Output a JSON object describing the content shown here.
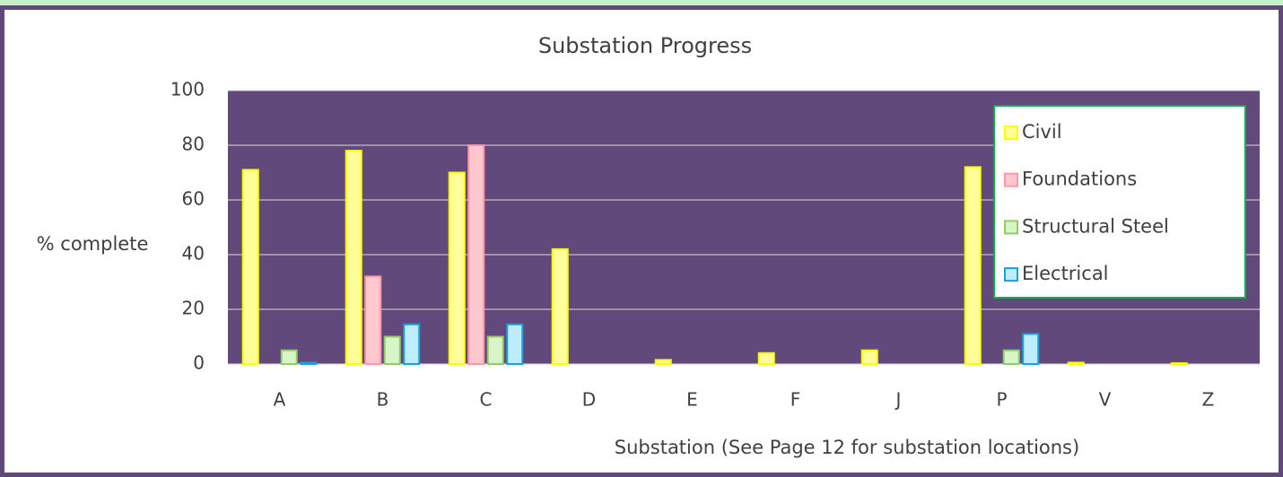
{
  "chart_data": {
    "type": "bar",
    "title": "Substation Progress",
    "x_label": "Substation (See Page 12 for substation locations)",
    "y_label": "% complete",
    "categories": [
      "A",
      "B",
      "C",
      "D",
      "E",
      "F",
      "J",
      "P",
      "V",
      "Z"
    ],
    "series": [
      {
        "name": "Civil",
        "color": "#ffff99",
        "border": "#ffff00",
        "values": [
          71,
          78,
          70,
          42,
          1.5,
          4,
          5,
          72,
          0.5,
          0.3
        ]
      },
      {
        "name": "Foundations",
        "color": "#ffc7ce",
        "border": "#ff99aa",
        "values": [
          0,
          32,
          80,
          0,
          0,
          0,
          0,
          0,
          0,
          0
        ]
      },
      {
        "name": "Structural Steel",
        "color": "#d8f5c8",
        "border": "#92cc6a",
        "values": [
          5,
          10,
          10,
          0,
          0,
          0,
          0,
          5,
          0,
          0
        ]
      },
      {
        "name": "Electrical",
        "color": "#bdeeff",
        "border": "#1a9fe0",
        "values": [
          0.5,
          14.5,
          14.5,
          0,
          0,
          0,
          0,
          11,
          0,
          0
        ]
      }
    ],
    "ylim": [
      0,
      100
    ],
    "yticks": [
      0,
      20,
      40,
      60,
      80,
      100
    ],
    "grid": true,
    "plot_background": "#614a7b",
    "legend": "upper right"
  }
}
